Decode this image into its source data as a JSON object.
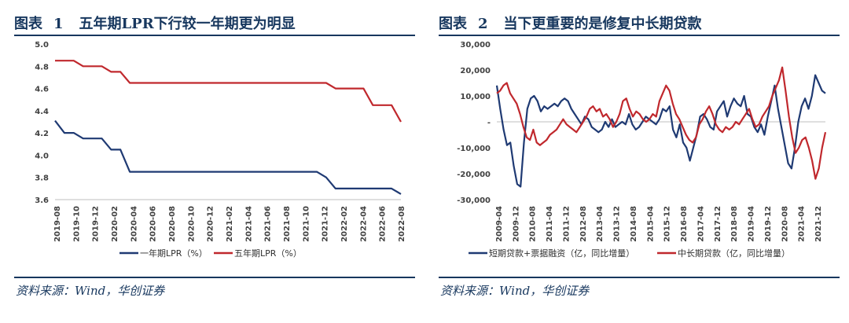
{
  "left": {
    "fig_label": "图表",
    "fig_number": "1",
    "fig_title": "五年期LPR下行较一年期更为明显",
    "source": "资料来源：Wind，华创证券"
  },
  "right": {
    "fig_label": "图表",
    "fig_number": "2",
    "fig_title": "当下更重要的是修复中长期贷款",
    "source": "资料来源：Wind，华创证券"
  },
  "colors": {
    "navy": "#1f3a73",
    "red": "#c0282d",
    "title": "#17375e"
  },
  "chart_data": [
    {
      "type": "line",
      "title": "",
      "ylim": [
        3.6,
        5.0
      ],
      "yticks": [
        "5.0",
        "4.8",
        "4.6",
        "4.4",
        "4.2",
        "4.0",
        "3.8",
        "3.6"
      ],
      "ytick_values": [
        5.0,
        4.8,
        4.6,
        4.4,
        4.2,
        4.0,
        3.8,
        3.6
      ],
      "x_labels": [
        "2019-08",
        "2019-10",
        "2019-12",
        "2020-02",
        "2020-04",
        "2020-06",
        "2020-08",
        "2020-10",
        "2020-12",
        "2021-02",
        "2021-04",
        "2021-06",
        "2021-08",
        "2021-10",
        "2021-12",
        "2022-02",
        "2022-04",
        "2022-06",
        "2022-08"
      ],
      "legend_position": "bottom",
      "series": [
        {
          "name": "一年期LPR（%）",
          "color": "#1f3a73",
          "values": [
            4.31,
            4.2,
            4.2,
            4.15,
            4.15,
            4.15,
            4.05,
            4.05,
            3.85,
            3.85,
            3.85,
            3.85,
            3.85,
            3.85,
            3.85,
            3.85,
            3.85,
            3.85,
            3.85,
            3.85,
            3.85,
            3.85,
            3.85,
            3.85,
            3.85,
            3.85,
            3.85,
            3.85,
            3.85,
            3.8,
            3.7,
            3.7,
            3.7,
            3.7,
            3.7,
            3.7,
            3.7,
            3.65
          ]
        },
        {
          "name": "五年期LPR（%）",
          "color": "#c0282d",
          "values": [
            4.85,
            4.85,
            4.85,
            4.8,
            4.8,
            4.8,
            4.75,
            4.75,
            4.65,
            4.65,
            4.65,
            4.65,
            4.65,
            4.65,
            4.65,
            4.65,
            4.65,
            4.65,
            4.65,
            4.65,
            4.65,
            4.65,
            4.65,
            4.65,
            4.65,
            4.65,
            4.65,
            4.65,
            4.65,
            4.65,
            4.6,
            4.6,
            4.6,
            4.6,
            4.45,
            4.45,
            4.45,
            4.3
          ]
        }
      ]
    },
    {
      "type": "line",
      "title": "",
      "ylim": [
        -30000,
        30000
      ],
      "yticks": [
        "30,000",
        "20,000",
        "10,000",
        "-",
        "-10,000",
        "-20,000",
        "-30,000"
      ],
      "ytick_values": [
        30000,
        20000,
        10000,
        0,
        -10000,
        -20000,
        -30000
      ],
      "x_labels": [
        "2009-04",
        "2009-12",
        "2010-08",
        "2011-04",
        "2011-12",
        "2012-08",
        "2013-04",
        "2013-12",
        "2014-08",
        "2015-04",
        "2015-12",
        "2016-08",
        "2017-04",
        "2017-12",
        "2018-08",
        "2019-04",
        "2019-12",
        "2020-08",
        "2021-04",
        "2021-12"
      ],
      "legend_position": "bottom",
      "series": [
        {
          "name": "短期贷款+票据融资（亿，同比增量）",
          "color": "#1f3a73",
          "values": [
            14000,
            5000,
            -3000,
            -9000,
            -8000,
            -17000,
            -24000,
            -25000,
            -8000,
            5000,
            9000,
            10000,
            8000,
            4000,
            6000,
            5000,
            6000,
            7000,
            6000,
            8000,
            9000,
            8000,
            5000,
            3000,
            1000,
            -1000,
            2000,
            1000,
            -2000,
            -3000,
            -4000,
            -3000,
            0,
            -2000,
            1000,
            -2000,
            -1000,
            0,
            -1000,
            3000,
            -1000,
            -3000,
            -2000,
            0,
            2000,
            1000,
            0,
            -1000,
            1000,
            5000,
            4000,
            6000,
            -3000,
            -6000,
            -1000,
            -8000,
            -10000,
            -15000,
            -10000,
            -5000,
            2000,
            3000,
            1000,
            -2000,
            -3000,
            4000,
            6000,
            8000,
            2000,
            6000,
            9000,
            7000,
            6000,
            10000,
            3000,
            2000,
            -2000,
            -4000,
            -1000,
            -5000,
            2000,
            8000,
            14000,
            5000,
            -2000,
            -9000,
            -16000,
            -18000,
            -10000,
            0,
            6000,
            9000,
            5000,
            10000,
            18000,
            15000,
            12000,
            11000
          ]
        },
        {
          "name": "中长期贷款（亿，同比增量）",
          "color": "#c0282d",
          "values": [
            11000,
            12000,
            14000,
            15000,
            11000,
            9000,
            7000,
            3000,
            -2000,
            -6000,
            -7000,
            -3000,
            -8000,
            -9000,
            -8000,
            -7000,
            -5000,
            -4000,
            -3000,
            -1000,
            1000,
            -1000,
            -2000,
            -3000,
            -4000,
            -2000,
            0,
            2000,
            5000,
            6000,
            4000,
            5000,
            2000,
            3000,
            1000,
            -2000,
            0,
            3000,
            8000,
            9000,
            5000,
            2000,
            4000,
            3000,
            1000,
            0,
            1000,
            3000,
            2000,
            8000,
            11000,
            14000,
            12000,
            7000,
            3000,
            1000,
            -2000,
            -5000,
            -7000,
            -8000,
            -6000,
            -1000,
            1000,
            4000,
            6000,
            3000,
            -1000,
            -3000,
            -4000,
            -2000,
            -3000,
            -2000,
            0,
            -1000,
            1000,
            3000,
            5000,
            1000,
            -2000,
            -1000,
            2000,
            4000,
            6000,
            10000,
            13000,
            16000,
            21000,
            12000,
            2000,
            -6000,
            -12000,
            -10000,
            -7000,
            -6000,
            -10000,
            -15000,
            -22000,
            -18000,
            -10000,
            -4000
          ]
        }
      ]
    }
  ]
}
